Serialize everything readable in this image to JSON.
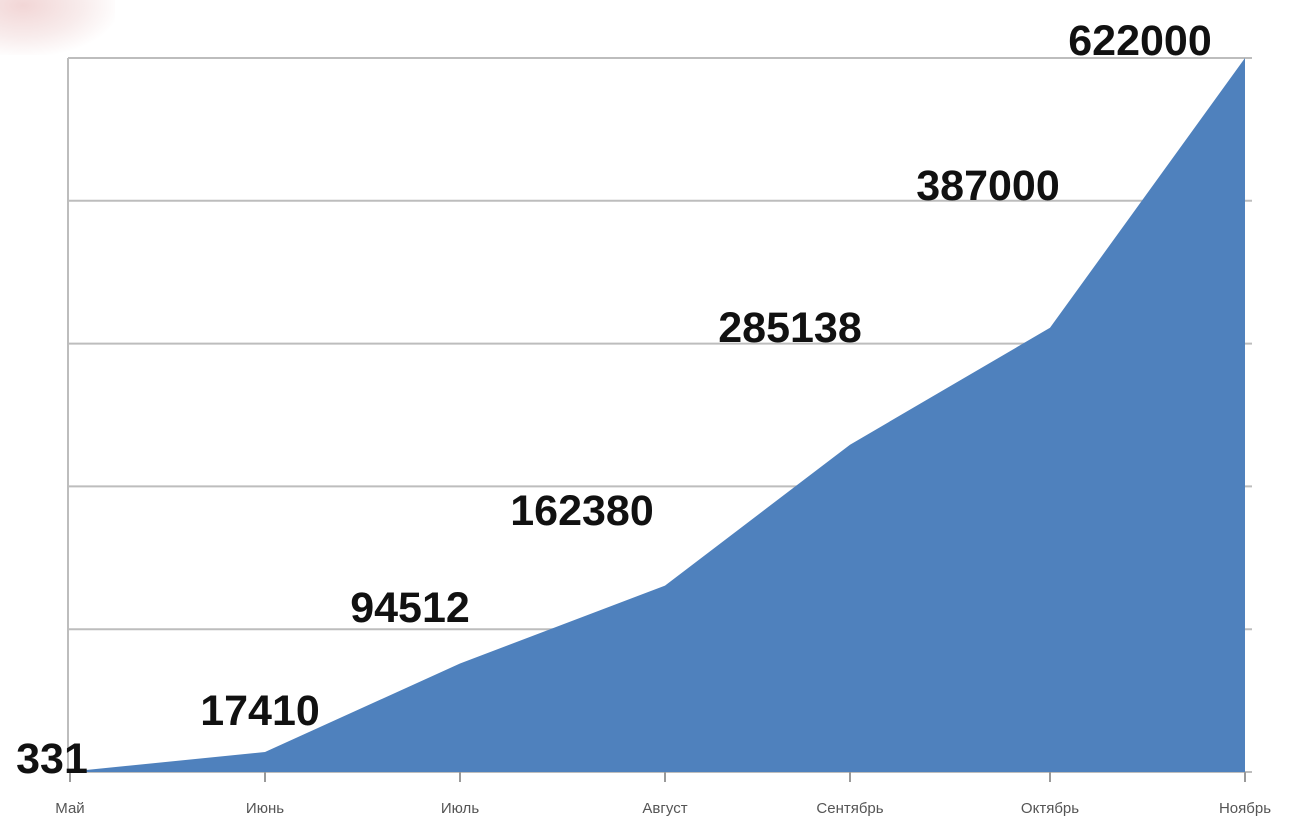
{
  "chart_data": {
    "type": "area",
    "categories": [
      "Май",
      "Июнь",
      "Июль",
      "Август",
      "Сентябрь",
      "Октябрь",
      "Ноябрь"
    ],
    "series": [
      {
        "values": [
          331,
          17410,
          94512,
          162380,
          285138,
          387000,
          622000
        ]
      }
    ],
    "data_labels": [
      "331",
      "17410",
      "94512",
      "162380",
      "285138",
      "387000",
      "622000"
    ],
    "ylim": [
      0,
      622000
    ],
    "grid": true,
    "gridline_count": 5,
    "legend": "none",
    "colors": {
      "area": "#4f81bd",
      "grid": "#bdbdbd"
    }
  }
}
